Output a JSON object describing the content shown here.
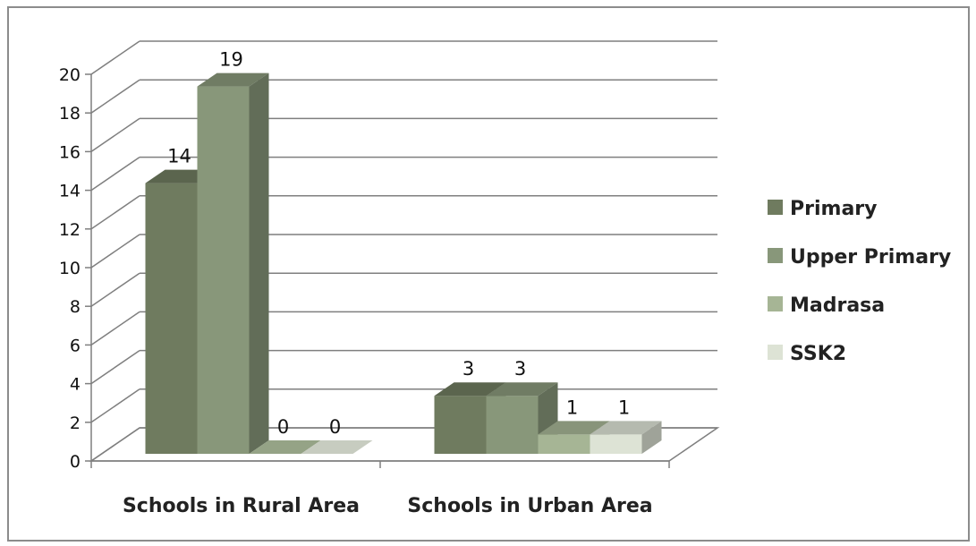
{
  "chart_data": {
    "type": "bar",
    "categories": [
      "Schools in Rural Area",
      "Schools in Urban Area"
    ],
    "series": [
      {
        "name": "Primary",
        "values": [
          14,
          3
        ],
        "color": "#6f7b5f"
      },
      {
        "name": "Upper Primary",
        "values": [
          19,
          3
        ],
        "color": "#88977a"
      },
      {
        "name": "Madrasa",
        "values": [
          0,
          1
        ],
        "color": "#a6b595"
      },
      {
        "name": "SSK2",
        "values": [
          0,
          1
        ],
        "color": "#dde3d5"
      }
    ],
    "data_labels": [
      [
        "14",
        "3"
      ],
      [
        "19",
        "3"
      ],
      [
        "0",
        "1"
      ],
      [
        "0",
        "1"
      ]
    ],
    "yticks": [
      "0",
      "2",
      "4",
      "6",
      "8",
      "10",
      "12",
      "14",
      "16",
      "18",
      "20"
    ],
    "ylim": [
      0,
      20
    ],
    "grid": true,
    "legend_position": "right",
    "style": "3d-clustered-column"
  }
}
